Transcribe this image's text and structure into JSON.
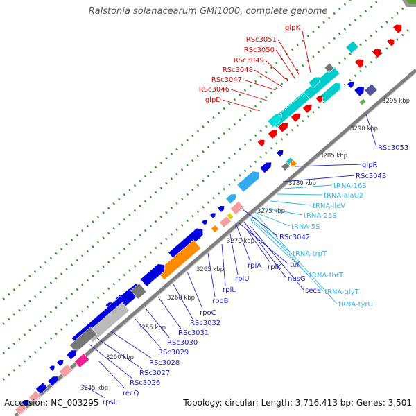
{
  "title": "Ralstonia solanacearum GMI1000, complete genome",
  "footer": {
    "accession": "Accession: NC_003295",
    "topology": "Topology: circular; Length: 3,716,413 bp; Genes: 3,501"
  },
  "colors": {
    "background": "#ffffff",
    "backbone": "#7f7f7f",
    "tick": "#2f8f2f",
    "label_red": "#dd0000",
    "label_blue": "#2020c0",
    "label_cyan": "#33b5e5",
    "kbp_text": "#333333"
  },
  "kbp_labels": [
    "3245 kbp",
    "3250 kbp",
    "3255 kbp",
    "3260 kbp",
    "3265 kbp",
    "3270 kbp",
    "3275 kbp",
    "3280 kbp",
    "3285 kbp",
    "3290 kbp",
    "3295 kbp"
  ],
  "labels_top": [
    "glpK",
    "RSc3051",
    "RSc3050",
    "RSc3049",
    "RSc3048",
    "RSc3047",
    "RSc3046",
    "glpD"
  ],
  "labels_right": [
    "RSc3053",
    "glpR",
    "RSc3043",
    "tRNA-16S",
    "tRNA-alaU2",
    "tRNA-ileV",
    "tRNA-23S",
    "tRNA-5S",
    "RSc3042",
    "tRNA-trpT",
    "tuf",
    "tRNA-thrT",
    "nusG",
    "secE",
    "tRNA-glyT",
    "tRNA-tyrU"
  ],
  "labels_bottom": [
    "rplA",
    "rplK",
    "rplU",
    "rplL",
    "rpoB",
    "rpoC",
    "RSc3032",
    "RSc3031",
    "RSc3030",
    "RSc3029",
    "RSc3028",
    "RSc3027",
    "RSc3026",
    "recQ",
    "rpsL"
  ]
}
